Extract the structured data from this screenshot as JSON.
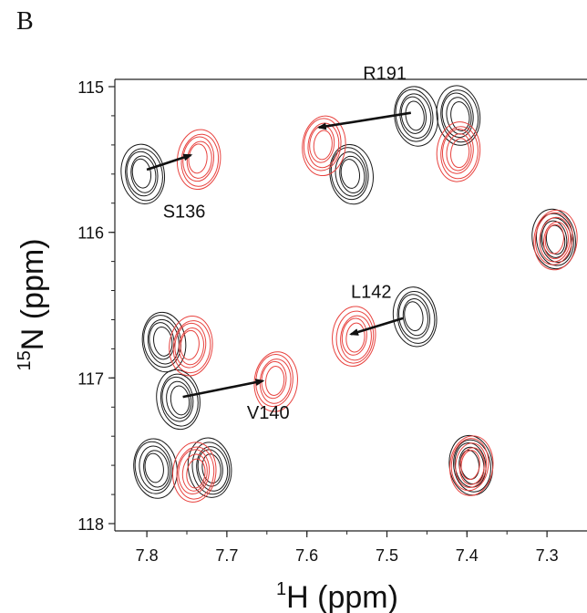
{
  "panel_label": "B",
  "colors": {
    "reference": "#1a1a1a",
    "shifted": "#e8433f",
    "arrow": "#111111"
  },
  "chart_data": {
    "type": "scatter",
    "title": "",
    "xlabel": "1H (ppm)",
    "xlabel_sup": "1",
    "xlabel_main": "H (ppm)",
    "ylabel": "15N (ppm)",
    "ylabel_sup": "15",
    "ylabel_main": "N (ppm)",
    "xlim": [
      7.84,
      7.25
    ],
    "ylim": [
      114.95,
      118.05
    ],
    "x_inverted": true,
    "y_inverted": true,
    "x_ticks": [
      7.8,
      7.7,
      7.6,
      7.5,
      7.4,
      7.3
    ],
    "x_tick_labels": [
      "7.8",
      "7.7",
      "7.6",
      "7.5",
      "7.4",
      "7.3"
    ],
    "y_ticks": [
      115,
      116,
      117,
      118
    ],
    "y_tick_labels": [
      "115",
      "116",
      "117",
      "118"
    ],
    "series": [
      {
        "color": "black",
        "points": [
          {
            "x": 7.805,
            "y": 115.6
          },
          {
            "x": 7.465,
            "y": 115.2
          },
          {
            "x": 7.41,
            "y": 115.2
          },
          {
            "x": 7.545,
            "y": 115.6
          },
          {
            "x": 7.29,
            "y": 116.05
          },
          {
            "x": 7.465,
            "y": 116.58
          },
          {
            "x": 7.78,
            "y": 116.75
          },
          {
            "x": 7.76,
            "y": 117.15
          },
          {
            "x": 7.79,
            "y": 117.62
          },
          {
            "x": 7.72,
            "y": 117.62
          },
          {
            "x": 7.395,
            "y": 117.6
          }
        ]
      },
      {
        "color": "red",
        "points": [
          {
            "x": 7.735,
            "y": 115.5
          },
          {
            "x": 7.58,
            "y": 115.4
          },
          {
            "x": 7.41,
            "y": 115.45
          },
          {
            "x": 7.29,
            "y": 116.05
          },
          {
            "x": 7.54,
            "y": 116.72
          },
          {
            "x": 7.745,
            "y": 116.78
          },
          {
            "x": 7.64,
            "y": 117.02
          },
          {
            "x": 7.74,
            "y": 117.65
          },
          {
            "x": 7.395,
            "y": 117.6
          }
        ]
      }
    ],
    "annotations": [
      {
        "label": "S136",
        "from": [
          7.8,
          115.57
        ],
        "to": [
          7.745,
          115.47
        ],
        "label_at": [
          7.78,
          115.9
        ]
      },
      {
        "label": "R191",
        "from": [
          7.47,
          115.18
        ],
        "to": [
          7.585,
          115.28
        ],
        "label_at": [
          7.53,
          114.95
        ]
      },
      {
        "label": "L142",
        "from": [
          7.48,
          116.59
        ],
        "to": [
          7.545,
          116.7
        ],
        "label_at": [
          7.545,
          116.45
        ]
      },
      {
        "label": "V140",
        "from": [
          7.755,
          117.13
        ],
        "to": [
          7.655,
          117.02
        ],
        "label_at": [
          7.675,
          117.28
        ]
      }
    ]
  }
}
